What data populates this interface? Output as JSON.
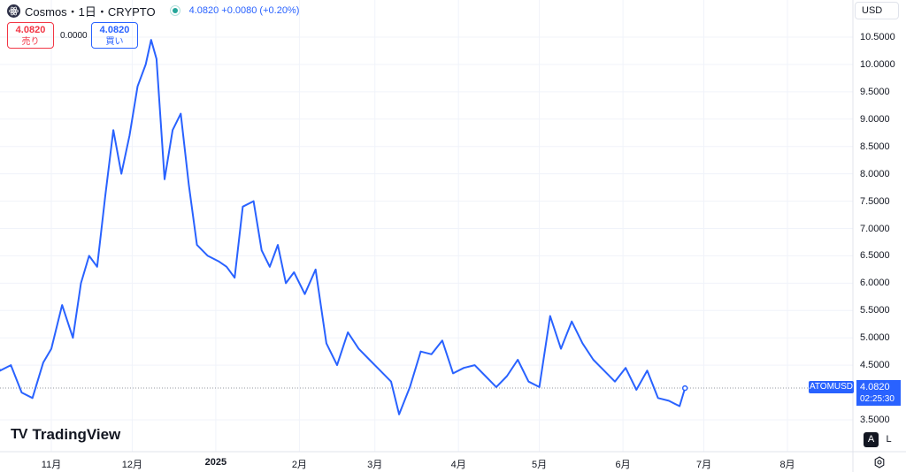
{
  "header": {
    "symbol_title": "Cosmos・1日・CRYPTO",
    "price_change": "4.0820 +0.0080 (+0.20%)",
    "coin_icon": "cosmos-atom-icon",
    "status_icon": "market-open-dot"
  },
  "trade": {
    "sell_price": "4.0820",
    "sell_label": "売り",
    "spread": "0.0000",
    "buy_price": "4.0820",
    "buy_label": "買い"
  },
  "currency_selector": "USD",
  "price_axis": [
    "10.5000",
    "10.0000",
    "9.5000",
    "9.0000",
    "8.5000",
    "8.0000",
    "7.5000",
    "7.0000",
    "6.5000",
    "6.0000",
    "5.5000",
    "5.0000",
    "4.5000",
    "3.5000"
  ],
  "time_axis": [
    "11月",
    "12月",
    "2025",
    "2月",
    "3月",
    "4月",
    "5月",
    "6月",
    "7月",
    "8月"
  ],
  "last_price": {
    "symbol_tag": "ATOMUSD",
    "price": "4.0820",
    "countdown": "02:25:30"
  },
  "branding": {
    "logo_text": "TradingView",
    "logo_mark": "TV"
  },
  "scale_buttons": {
    "auto": "A",
    "log": "L"
  },
  "colors": {
    "line": "#2962ff",
    "accent": "#2962ff",
    "sell": "#f23645",
    "grid": "#f0f3fa"
  },
  "chart_data": {
    "type": "line",
    "title": "Cosmos・1日・CRYPTO",
    "xlabel": "",
    "ylabel": "",
    "ylim": [
      3.35,
      10.85
    ],
    "x_range": [
      "2024-10-01",
      "2025-08-31"
    ],
    "grid": true,
    "x": [
      "2024-10-01",
      "2024-10-05",
      "2024-10-09",
      "2024-10-13",
      "2024-10-17",
      "2024-10-21",
      "2024-10-25",
      "2024-10-29",
      "2024-11-01",
      "2024-11-05",
      "2024-11-09",
      "2024-11-12",
      "2024-11-15",
      "2024-11-18",
      "2024-11-21",
      "2024-11-24",
      "2024-11-27",
      "2024-11-30",
      "2024-12-03",
      "2024-12-06",
      "2024-12-08",
      "2024-12-10",
      "2024-12-13",
      "2024-12-16",
      "2024-12-19",
      "2024-12-22",
      "2024-12-25",
      "2024-12-29",
      "2025-01-02",
      "2025-01-05",
      "2025-01-08",
      "2025-01-11",
      "2025-01-15",
      "2025-01-18",
      "2025-01-21",
      "2025-01-24",
      "2025-01-27",
      "2025-01-30",
      "2025-02-03",
      "2025-02-07",
      "2025-02-11",
      "2025-02-15",
      "2025-02-19",
      "2025-02-23",
      "2025-02-27",
      "2025-03-03",
      "2025-03-07",
      "2025-03-10",
      "2025-03-14",
      "2025-03-18",
      "2025-03-22",
      "2025-03-26",
      "2025-03-30",
      "2025-04-03",
      "2025-04-07",
      "2025-04-11",
      "2025-04-15",
      "2025-04-19",
      "2025-04-23",
      "2025-04-27",
      "2025-05-01",
      "2025-05-05",
      "2025-05-09",
      "2025-05-13",
      "2025-05-17",
      "2025-05-21",
      "2025-05-25",
      "2025-05-29",
      "2025-06-02",
      "2025-06-06",
      "2025-06-10",
      "2025-06-14",
      "2025-06-18",
      "2025-06-22",
      "2025-06-24"
    ],
    "series": [
      {
        "values": [
          4.5,
          4.35,
          4.85,
          4.4,
          4.5,
          4.0,
          3.9,
          4.55,
          4.8,
          5.6,
          5.0,
          6.0,
          6.5,
          6.3,
          7.6,
          8.8,
          8.0,
          8.7,
          9.6,
          10.0,
          10.45,
          10.1,
          7.9,
          8.8,
          9.1,
          7.8,
          6.7,
          6.5,
          6.4,
          6.3,
          6.1,
          7.4,
          7.5,
          6.6,
          6.3,
          6.7,
          6.0,
          6.2,
          5.8,
          6.25,
          4.9,
          4.5,
          5.1,
          4.8,
          4.6,
          4.4,
          4.2,
          3.6,
          4.1,
          4.75,
          4.7,
          4.95,
          4.35,
          4.45,
          4.5,
          4.3,
          4.1,
          4.3,
          4.6,
          4.2,
          4.1,
          5.4,
          4.8,
          5.3,
          4.9,
          4.6,
          4.4,
          4.2,
          4.45,
          4.05,
          4.4,
          3.9,
          3.85,
          3.75,
          4.08
        ]
      }
    ]
  }
}
